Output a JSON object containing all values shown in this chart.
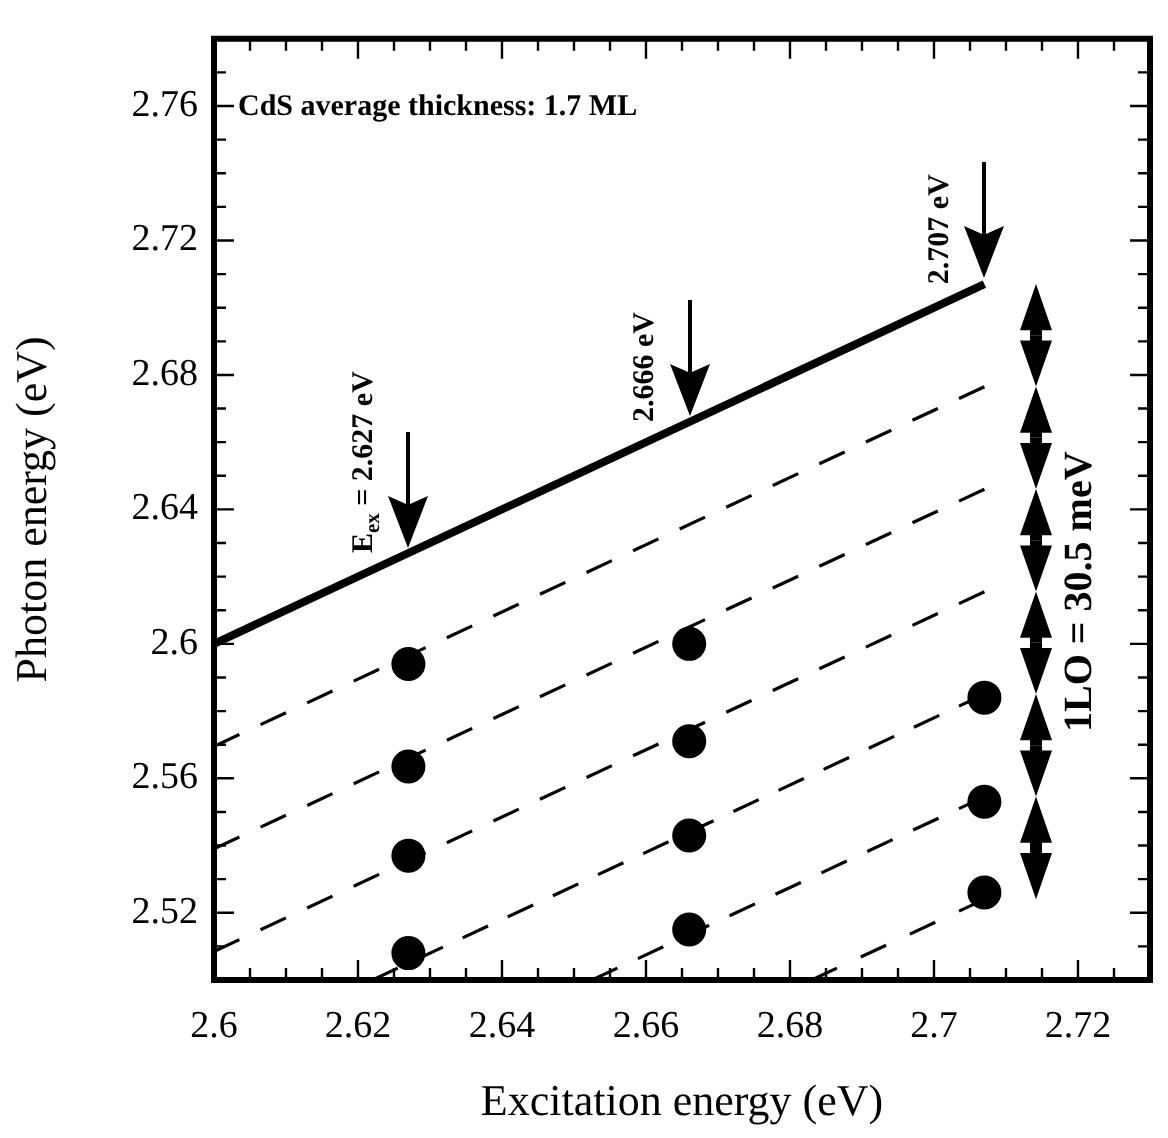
{
  "chart_data": {
    "type": "scatter",
    "xlabel": "Excitation energy (eV)",
    "ylabel": "Photon energy (eV)",
    "xlim": [
      2.6,
      2.73
    ],
    "ylim": [
      2.5,
      2.78
    ],
    "xticks": [
      2.6,
      {
        "value": 2.605,
        "label": null
      },
      {
        "value": 2.61,
        "label": null
      },
      {
        "value": 2.615,
        "label": null
      },
      2.62,
      {
        "value": 2.625,
        "label": null
      },
      {
        "value": 2.63,
        "label": null
      },
      {
        "value": 2.635,
        "label": null
      },
      2.64,
      {
        "value": 2.645,
        "label": null
      },
      {
        "value": 2.65,
        "label": null
      },
      {
        "value": 2.655,
        "label": null
      },
      2.66,
      {
        "value": 2.665,
        "label": null
      },
      {
        "value": 2.67,
        "label": null
      },
      {
        "value": 2.675,
        "label": null
      },
      2.68,
      {
        "value": 2.685,
        "label": null
      },
      {
        "value": 2.69,
        "label": null
      },
      {
        "value": 2.695,
        "label": null
      },
      2.7,
      {
        "value": 2.705,
        "label": null
      },
      {
        "value": 2.71,
        "label": null
      },
      {
        "value": 2.715,
        "label": null
      },
      2.72,
      {
        "value": 2.725,
        "label": null
      }
    ],
    "yticks": [
      {
        "value": 2.51,
        "label": null
      },
      2.52,
      {
        "value": 2.53,
        "label": null
      },
      {
        "value": 2.54,
        "label": null
      },
      {
        "value": 2.55,
        "label": null
      },
      2.56,
      {
        "value": 2.57,
        "label": null
      },
      {
        "value": 2.58,
        "label": null
      },
      {
        "value": 2.59,
        "label": null
      },
      2.6,
      {
        "value": 2.61,
        "label": null
      },
      {
        "value": 2.62,
        "label": null
      },
      {
        "value": 2.63,
        "label": null
      },
      2.64,
      {
        "value": 2.65,
        "label": null
      },
      {
        "value": 2.66,
        "label": null
      },
      {
        "value": 2.67,
        "label": null
      },
      2.68,
      {
        "value": 2.69,
        "label": null
      },
      {
        "value": 2.7,
        "label": null
      },
      {
        "value": 2.71,
        "label": null
      },
      2.72,
      {
        "value": 2.73,
        "label": null
      },
      {
        "value": 2.74,
        "label": null
      },
      {
        "value": 2.75,
        "label": null
      },
      2.76,
      {
        "value": 2.77,
        "label": null
      }
    ],
    "grid": false,
    "legend": false,
    "series": [
      {
        "type": "line",
        "color": "#000000",
        "line_style": "solid",
        "marker": "none",
        "x": [
          2.6,
          2.707
        ],
        "values": [
          2.6,
          2.707
        ]
      },
      {
        "type": "line",
        "color": "#000000",
        "line_style": "dashed",
        "marker": "none",
        "x": [
          2.6,
          2.707
        ],
        "values": [
          2.5695,
          2.6765
        ]
      },
      {
        "type": "line",
        "color": "#000000",
        "line_style": "dashed",
        "marker": "none",
        "x": [
          2.6,
          2.707
        ],
        "values": [
          2.539,
          2.646
        ]
      },
      {
        "type": "line",
        "color": "#000000",
        "line_style": "dashed",
        "marker": "none",
        "x": [
          2.6,
          2.707
        ],
        "values": [
          2.5085,
          2.6155
        ]
      },
      {
        "type": "line",
        "color": "#000000",
        "line_style": "dashed",
        "marker": "none",
        "x": [
          2.622,
          2.707
        ],
        "values": [
          2.5,
          2.585
        ]
      },
      {
        "type": "line",
        "color": "#000000",
        "line_style": "dashed",
        "marker": "none",
        "x": [
          2.6525,
          2.707
        ],
        "values": [
          2.5,
          2.5545
        ]
      },
      {
        "type": "line",
        "color": "#000000",
        "line_style": "dashed",
        "marker": "none",
        "x": [
          2.683,
          2.707
        ],
        "values": [
          2.5,
          2.524
        ]
      },
      {
        "color": "#000000",
        "marker": "circle",
        "x": [
          2.627,
          2.627,
          2.627,
          2.627,
          2.666,
          2.666,
          2.666,
          2.666,
          2.707,
          2.707,
          2.707
        ],
        "values": [
          2.594,
          2.5635,
          2.537,
          2.508,
          2.6,
          2.571,
          2.543,
          2.515,
          2.584,
          2.553,
          2.526
        ]
      }
    ],
    "annotations": [
      "CdS average thickness: 1.7 ML",
      {
        "text": "E$_{ex}$ = 2.627 eV",
        "x": 2.627,
        "y": 2.627
      },
      {
        "text": "2.666 eV",
        "x": 2.666,
        "y": 2.666
      },
      {
        "text": "2.707 eV",
        "x": 2.707,
        "y": 2.707
      },
      "1LO = 30.5 meV"
    ]
  }
}
